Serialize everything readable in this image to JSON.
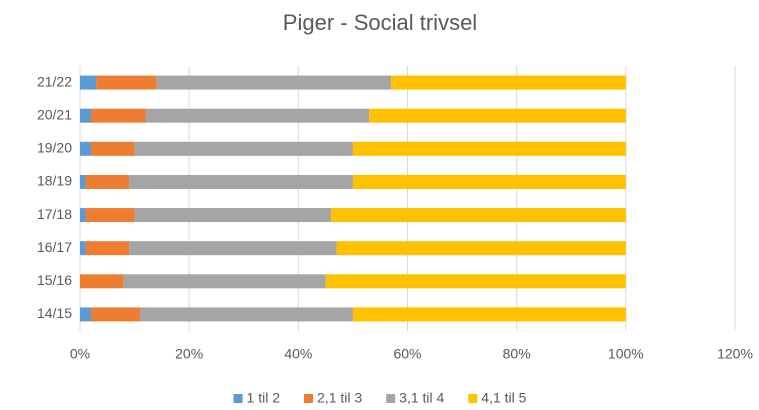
{
  "chart_data": {
    "type": "stacked_barh",
    "title": "Piger - Social trivsel",
    "categories": [
      "21/22",
      "20/21",
      "19/20",
      "18/19",
      "17/18",
      "16/17",
      "15/16",
      "14/15"
    ],
    "series": [
      {
        "name": "1 til 2",
        "color": "#5b9bd5",
        "values": [
          3,
          2,
          2,
          1,
          1,
          1,
          0,
          2
        ]
      },
      {
        "name": "2,1 til 3",
        "color": "#ed7d31",
        "values": [
          11,
          10,
          8,
          8,
          9,
          8,
          8,
          9
        ]
      },
      {
        "name": "3,1 til 4",
        "color": "#a5a5a5",
        "values": [
          43,
          41,
          40,
          41,
          36,
          38,
          37,
          39
        ]
      },
      {
        "name": "4,1 til 5",
        "color": "#ffc000",
        "values": [
          43,
          47,
          50,
          50,
          54,
          53,
          55,
          50
        ]
      }
    ],
    "xlim": [
      0,
      120
    ],
    "xticks": [
      {
        "value": 0,
        "label": "0%"
      },
      {
        "value": 20,
        "label": "20%"
      },
      {
        "value": 40,
        "label": "40%"
      },
      {
        "value": 60,
        "label": "60%"
      },
      {
        "value": 80,
        "label": "80%"
      },
      {
        "value": 100,
        "label": "100%"
      },
      {
        "value": 120,
        "label": "120%"
      }
    ],
    "grid": true,
    "legend": "bottom"
  }
}
